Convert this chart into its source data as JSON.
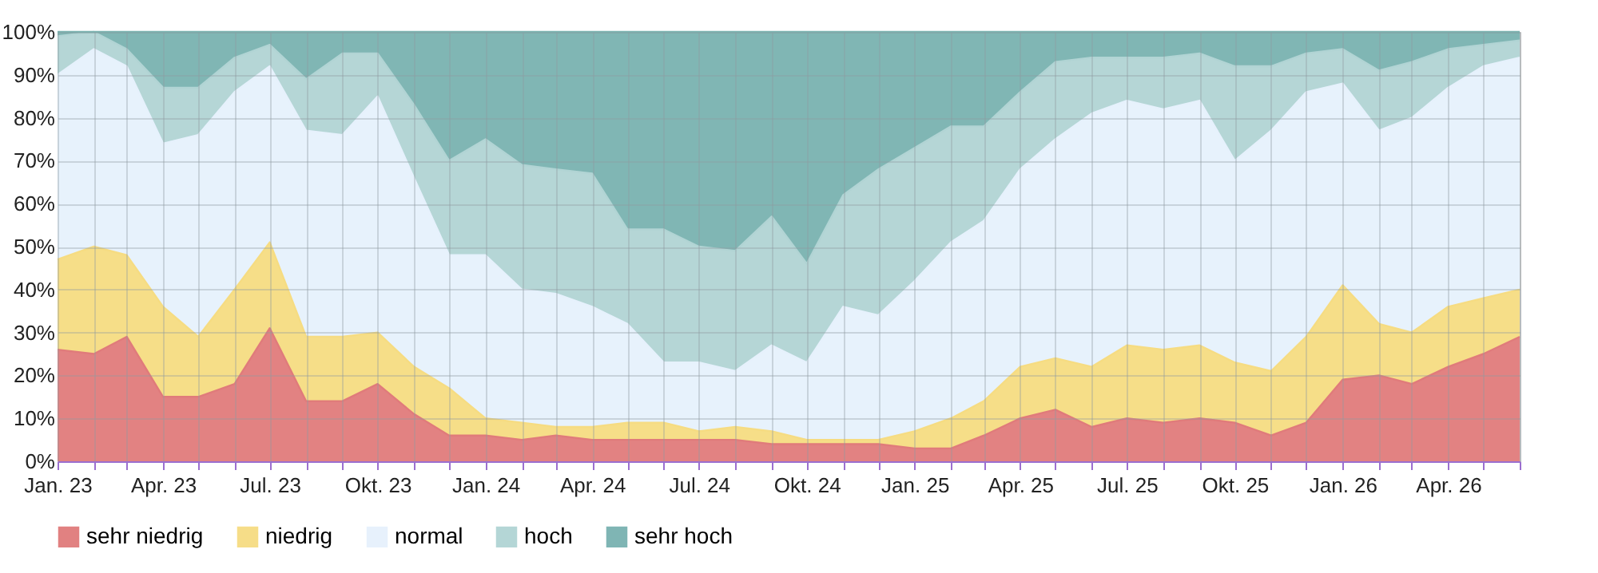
{
  "chart_data": {
    "type": "area",
    "stacked": true,
    "x": [
      "2023-01",
      "2023-02",
      "2023-03",
      "2023-04",
      "2023-05",
      "2023-06",
      "2023-07",
      "2023-08",
      "2023-09",
      "2023-10",
      "2023-11",
      "2023-12",
      "2024-01",
      "2024-02",
      "2024-03",
      "2024-04",
      "2024-05",
      "2024-06",
      "2024-07",
      "2024-08",
      "2024-09",
      "2024-10",
      "2024-11",
      "2024-12",
      "2025-01",
      "2025-02",
      "2025-03",
      "2025-04",
      "2025-05",
      "2025-06",
      "2025-07",
      "2025-08",
      "2025-09",
      "2025-10",
      "2025-11",
      "2025-12",
      "2026-01",
      "2026-02",
      "2026-03",
      "2026-04",
      "2026-05",
      "2026-06"
    ],
    "series": [
      {
        "name": "sehr niedrig",
        "color": "#e07b7b",
        "values": [
          26,
          25,
          29,
          15,
          15,
          18,
          31,
          14,
          14,
          18,
          11,
          6,
          6,
          5,
          6,
          5,
          5,
          5,
          5,
          5,
          4,
          4,
          4,
          4,
          3,
          3,
          6,
          10,
          12,
          8,
          10,
          9,
          10,
          9,
          6,
          9,
          19,
          20,
          18,
          22,
          25,
          29
        ]
      },
      {
        "name": "niedrig",
        "color": "#f6dc82",
        "values": [
          21,
          25,
          19,
          21,
          14,
          22,
          20,
          15,
          15,
          12,
          11,
          11,
          4,
          4,
          2,
          3,
          4,
          4,
          2,
          3,
          3,
          1,
          1,
          1,
          4,
          7,
          8,
          12,
          12,
          14,
          17,
          17,
          17,
          14,
          15,
          20,
          22,
          12,
          12,
          14,
          13,
          11
        ]
      },
      {
        "name": "normal",
        "color": "#e6f1fc",
        "values": [
          43,
          46,
          44,
          38,
          47,
          46,
          41,
          48,
          47,
          55,
          44,
          31,
          38,
          31,
          31,
          28,
          23,
          14,
          16,
          13,
          20,
          18,
          31,
          29,
          35,
          41,
          42,
          46,
          51,
          59,
          57,
          56,
          57,
          47,
          56,
          57,
          47,
          45,
          50,
          51,
          54,
          54
        ]
      },
      {
        "name": "hoch",
        "color": "#b1d4d4",
        "values": [
          9,
          4,
          4,
          13,
          11,
          8,
          5,
          12,
          19,
          10,
          17,
          22,
          27,
          29,
          29,
          31,
          22,
          31,
          27,
          28,
          30,
          23,
          26,
          34,
          31,
          27,
          22,
          18,
          18,
          13,
          10,
          12,
          11,
          22,
          15,
          9,
          8,
          14,
          13,
          9,
          5,
          4
        ]
      },
      {
        "name": "sehr hoch",
        "color": "#79b2b0",
        "values": [
          1,
          0,
          4,
          13,
          13,
          6,
          3,
          11,
          5,
          5,
          17,
          30,
          25,
          31,
          32,
          33,
          46,
          46,
          50,
          51,
          43,
          54,
          38,
          32,
          27,
          22,
          22,
          14,
          7,
          6,
          6,
          6,
          5,
          8,
          8,
          5,
          4,
          9,
          7,
          4,
          3,
          2
        ]
      }
    ],
    "xlim": [
      "2023-01",
      "2026-06"
    ],
    "xticks": [
      {
        "value": "2023-01",
        "label": "Jan. 23"
      },
      {
        "value": "2023-02",
        "label": null
      },
      {
        "value": "2023-03",
        "label": null
      },
      {
        "value": "2023-04",
        "label": "Apr. 23"
      },
      {
        "value": "2023-05",
        "label": null
      },
      {
        "value": "2023-06",
        "label": null
      },
      {
        "value": "2023-07",
        "label": "Jul. 23"
      },
      {
        "value": "2023-08",
        "label": null
      },
      {
        "value": "2023-09",
        "label": null
      },
      {
        "value": "2023-10",
        "label": "Okt. 23"
      },
      {
        "value": "2023-11",
        "label": null
      },
      {
        "value": "2023-12",
        "label": null
      },
      {
        "value": "2024-01",
        "label": "Jan. 24"
      },
      {
        "value": "2024-02",
        "label": null
      },
      {
        "value": "2024-03",
        "label": null
      },
      {
        "value": "2024-04",
        "label": "Apr. 24"
      },
      {
        "value": "2024-05",
        "label": null
      },
      {
        "value": "2024-06",
        "label": null
      },
      {
        "value": "2024-07",
        "label": "Jul. 24"
      },
      {
        "value": "2024-08",
        "label": null
      },
      {
        "value": "2024-09",
        "label": null
      },
      {
        "value": "2024-10",
        "label": "Okt. 24"
      },
      {
        "value": "2024-11",
        "label": null
      },
      {
        "value": "2024-12",
        "label": null
      },
      {
        "value": "2025-01",
        "label": "Jan. 25"
      },
      {
        "value": "2025-02",
        "label": null
      },
      {
        "value": "2025-03",
        "label": null
      },
      {
        "value": "2025-04",
        "label": "Apr. 25"
      },
      {
        "value": "2025-05",
        "label": null
      },
      {
        "value": "2025-06",
        "label": null
      },
      {
        "value": "2025-07",
        "label": "Jul. 25"
      },
      {
        "value": "2025-08",
        "label": null
      },
      {
        "value": "2025-09",
        "label": null
      },
      {
        "value": "2025-10",
        "label": "Okt. 25"
      },
      {
        "value": "2025-11",
        "label": null
      },
      {
        "value": "2025-12",
        "label": null
      },
      {
        "value": "2026-01",
        "label": "Jan. 26"
      },
      {
        "value": "2026-02",
        "label": null
      },
      {
        "value": "2026-03",
        "label": null
      },
      {
        "value": "2026-04",
        "label": "Apr. 26"
      },
      {
        "value": "2026-05",
        "label": null
      },
      {
        "value": "2026-06",
        "label": null
      }
    ],
    "ylim": [
      0,
      100
    ],
    "yticks": [
      {
        "value": 0,
        "label": "0%"
      },
      {
        "value": 10,
        "label": "10%"
      },
      {
        "value": 20,
        "label": "20%"
      },
      {
        "value": 30,
        "label": "30%"
      },
      {
        "value": 40,
        "label": "40%"
      },
      {
        "value": 50,
        "label": "50%"
      },
      {
        "value": 60,
        "label": "60%"
      },
      {
        "value": 70,
        "label": "70%"
      },
      {
        "value": 80,
        "label": "80%"
      },
      {
        "value": 90,
        "label": "90%"
      },
      {
        "value": 100,
        "label": "100%"
      }
    ],
    "grid": true,
    "legend": "bottom"
  }
}
